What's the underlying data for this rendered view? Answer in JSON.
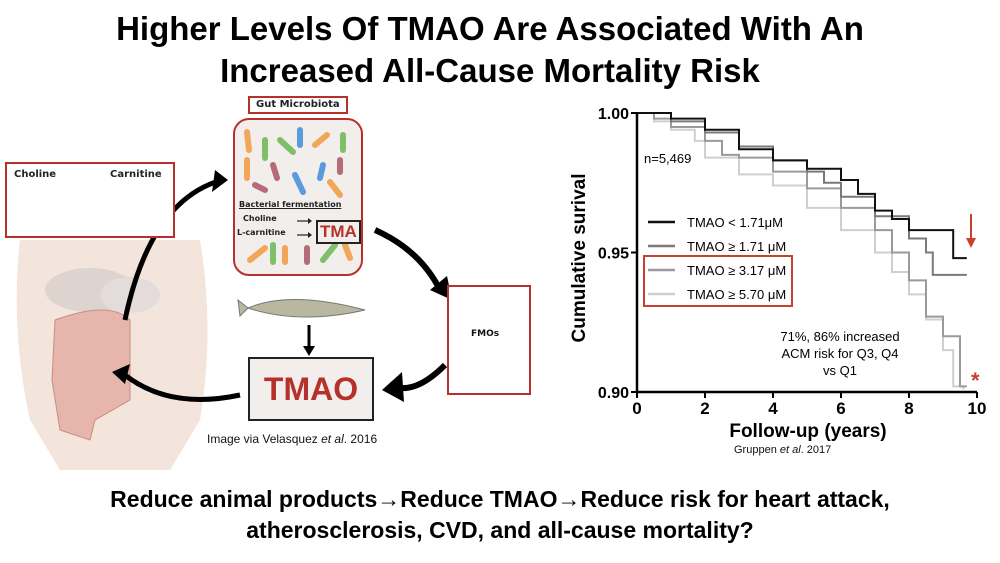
{
  "title_line1": "Higher Levels Of TMAO Are Associated With An",
  "title_line2": "Increased All-Cause Mortality Risk",
  "diagram": {
    "food_box": {
      "choline": "Choline",
      "carnitine": "Carnitine"
    },
    "gut_microbiota_label": "Gut Microbiota",
    "fermentation_label": "Bacterial fermentation",
    "choline_label": "Choline",
    "lcarnitine_label": "L-carnitine",
    "tma_label": "TMA",
    "tmao_label": "TMAO",
    "fmo_label": "FMOs",
    "caption_prefix": "Image via Velasquez ",
    "caption_italic": "et al",
    "caption_suffix": ". 2016",
    "colors": {
      "accent_red": "#b7312c",
      "panel_bg": "#f2eeeb"
    }
  },
  "chart_data": {
    "type": "line",
    "step": true,
    "xlabel": "Follow-up (years)",
    "ylabel": "Cumulative surival",
    "xlim": [
      0,
      10
    ],
    "ylim": [
      0.9,
      1.0
    ],
    "xticks": [
      "0",
      "2",
      "4",
      "6",
      "8",
      "10"
    ],
    "yticks": [
      "0.90",
      "0.95",
      "1.00"
    ],
    "grid": false,
    "legend_placement": "center-left",
    "annotation_n": "n=5,469",
    "annotation_risk": [
      "71%, 86% increased",
      "ACM risk for Q3, Q4",
      "vs Q1"
    ],
    "source_prefix": "Gruppen ",
    "source_italic": "et al",
    "source_suffix": ". 2017",
    "series": [
      {
        "name": "TMAO < 1.71μM",
        "color": "#111111",
        "x": [
          0,
          0.4,
          1,
          2,
          3,
          4,
          5,
          6,
          6.5,
          7,
          7.5,
          8,
          9.3,
          9.3,
          9.7
        ],
        "y": [
          1,
          1,
          0.998,
          0.994,
          0.987,
          0.983,
          0.98,
          0.976,
          0.971,
          0.965,
          0.962,
          0.958,
          0.957,
          0.948,
          0.948
        ]
      },
      {
        "name": "TMAO ≥ 1.71 μM",
        "color": "#7a7a7a",
        "x": [
          0,
          1,
          2,
          3,
          4,
          5,
          5.5,
          6,
          7,
          8,
          8.5,
          8.7,
          9.7
        ],
        "y": [
          1,
          0.997,
          0.993,
          0.988,
          0.983,
          0.979,
          0.975,
          0.97,
          0.963,
          0.955,
          0.95,
          0.942,
          0.942
        ]
      },
      {
        "name": "TMAO ≥ 3.17 μM",
        "color": "#9a9a9a",
        "x": [
          0,
          0.5,
          1,
          2,
          2.5,
          3,
          4,
          5,
          6,
          7,
          7.5,
          8,
          8.5,
          9,
          9.5,
          9.5,
          9.7
        ],
        "y": [
          1,
          0.998,
          0.995,
          0.99,
          0.985,
          0.984,
          0.979,
          0.973,
          0.966,
          0.958,
          0.95,
          0.94,
          0.927,
          0.92,
          0.92,
          0.902,
          0.902
        ]
      },
      {
        "name": "TMAO ≥ 5.70 μM",
        "color": "#cfcfcf",
        "x": [
          0,
          0.5,
          1,
          1.7,
          2,
          3,
          4,
          5,
          6,
          7,
          7.5,
          8,
          8.5,
          9,
          9.3,
          9.6
        ],
        "y": [
          1,
          0.997,
          0.994,
          0.99,
          0.984,
          0.978,
          0.974,
          0.966,
          0.958,
          0.95,
          0.943,
          0.935,
          0.926,
          0.915,
          0.902,
          0.901
        ]
      }
    ],
    "highlight_color": "#c8402e"
  },
  "bottom_line1": "Reduce animal products→Reduce TMAO→Reduce risk for heart attack,",
  "bottom_line2": "atherosclerosis, CVD, and all-cause mortality?"
}
